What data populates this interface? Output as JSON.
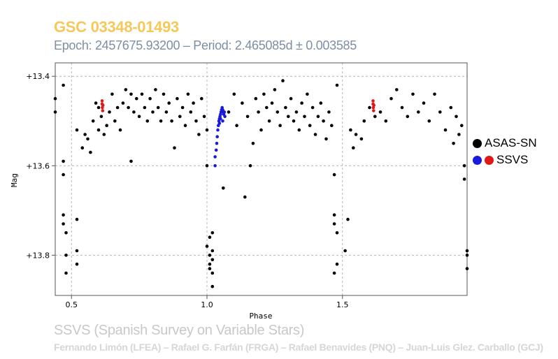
{
  "header": {
    "star_name": "GSC 03348-01493",
    "epoch_line": "Epoch: 2457675.93200 – Period: 2.465085d ± 0.003585"
  },
  "footer": {
    "survey": "SSVS (Spanish Survey on Variable Stars)",
    "credits": "Fernando Limón (LFEA) – Rafael G. Farfán (FRGA) – Rafael Benavides (PNQ) – Juan-Luis Glez. Carballo (GCJ)"
  },
  "legend": {
    "asassn_label": "ASAS-SN",
    "ssvs_label": "SSVS"
  },
  "colors": {
    "title": "#f5c85a",
    "subtitle": "#7d8fa3",
    "asassn": "#000000",
    "ssvs_blue": "#1a1adb",
    "ssvs_red": "#e01818",
    "grid": "#b4b4b4"
  },
  "chart_data": {
    "type": "scatter",
    "title": "GSC 03348-01493",
    "xlabel": "Phase",
    "ylabel": "Mag",
    "xlim": [
      0.44,
      1.96
    ],
    "ylim": [
      13.89,
      13.37
    ],
    "y_inverted": true,
    "x_ticks": [
      0.5,
      1.0,
      1.5
    ],
    "x_tick_labels": [
      "0.5",
      "1.0",
      "1.5"
    ],
    "y_ticks": [
      13.4,
      13.6,
      13.8
    ],
    "y_tick_labels": [
      "+13.4",
      "+13.6",
      "+13.8"
    ],
    "grid": true,
    "legend_position": "right",
    "series": [
      {
        "name": "ASAS-SN",
        "color": "#000000",
        "points": [
          [
            0.44,
            13.45
          ],
          [
            0.44,
            13.48
          ],
          [
            0.47,
            13.42
          ],
          [
            0.47,
            13.59
          ],
          [
            0.47,
            13.71
          ],
          [
            0.47,
            13.73
          ],
          [
            0.48,
            13.75
          ],
          [
            0.47,
            13.62
          ],
          [
            0.48,
            13.84
          ],
          [
            0.48,
            13.8
          ],
          [
            0.52,
            13.72
          ],
          [
            0.52,
            13.79
          ],
          [
            0.52,
            13.82
          ],
          [
            0.52,
            13.52
          ],
          [
            0.54,
            13.56
          ],
          [
            0.55,
            13.53
          ],
          [
            0.56,
            13.54
          ],
          [
            0.57,
            13.57
          ],
          [
            0.58,
            13.5
          ],
          [
            0.59,
            13.46
          ],
          [
            0.6,
            13.47
          ],
          [
            0.6,
            13.52
          ],
          [
            0.61,
            13.49
          ],
          [
            0.62,
            13.53
          ],
          [
            0.63,
            13.51
          ],
          [
            0.64,
            13.48
          ],
          [
            0.65,
            13.44
          ],
          [
            0.66,
            13.5
          ],
          [
            0.67,
            13.47
          ],
          [
            0.68,
            13.52
          ],
          [
            0.69,
            13.46
          ],
          [
            0.7,
            13.43
          ],
          [
            0.71,
            13.47
          ],
          [
            0.72,
            13.44
          ],
          [
            0.72,
            13.59
          ],
          [
            0.73,
            13.48
          ],
          [
            0.74,
            13.45
          ],
          [
            0.75,
            13.49
          ],
          [
            0.76,
            13.44
          ],
          [
            0.77,
            13.47
          ],
          [
            0.78,
            13.5
          ],
          [
            0.79,
            13.45
          ],
          [
            0.8,
            13.48
          ],
          [
            0.81,
            13.43
          ],
          [
            0.82,
            13.47
          ],
          [
            0.83,
            13.5
          ],
          [
            0.84,
            13.44
          ],
          [
            0.85,
            13.48
          ],
          [
            0.86,
            13.46
          ],
          [
            0.87,
            13.5
          ],
          [
            0.88,
            13.56
          ],
          [
            0.89,
            13.45
          ],
          [
            0.9,
            13.49
          ],
          [
            0.91,
            13.47
          ],
          [
            0.92,
            13.51
          ],
          [
            0.93,
            13.44
          ],
          [
            0.94,
            13.48
          ],
          [
            0.95,
            13.46
          ],
          [
            0.96,
            13.5
          ],
          [
            0.97,
            13.53
          ],
          [
            0.98,
            13.45
          ],
          [
            0.99,
            13.49
          ],
          [
            1.0,
            13.6
          ],
          [
            1.0,
            13.52
          ],
          [
            1.0,
            13.78
          ],
          [
            1.01,
            13.8
          ],
          [
            1.01,
            13.82
          ],
          [
            1.02,
            13.84
          ],
          [
            1.02,
            13.79
          ],
          [
            1.01,
            13.76
          ],
          [
            1.02,
            13.87
          ],
          [
            1.02,
            13.75
          ],
          [
            1.01,
            13.83
          ],
          [
            1.02,
            13.81
          ],
          [
            1.06,
            13.65
          ],
          [
            1.08,
            13.48
          ],
          [
            1.1,
            13.44
          ],
          [
            1.11,
            13.51
          ],
          [
            1.13,
            13.46
          ],
          [
            1.14,
            13.67
          ],
          [
            1.15,
            13.49
          ],
          [
            1.16,
            13.6
          ],
          [
            1.17,
            13.55
          ],
          [
            1.18,
            13.45
          ],
          [
            1.19,
            13.48
          ],
          [
            1.2,
            13.52
          ],
          [
            1.21,
            13.44
          ],
          [
            1.22,
            13.47
          ],
          [
            1.23,
            13.5
          ],
          [
            1.24,
            13.46
          ],
          [
            1.25,
            13.43
          ],
          [
            1.26,
            13.48
          ],
          [
            1.27,
            13.51
          ],
          [
            1.28,
            13.41
          ],
          [
            1.29,
            13.47
          ],
          [
            1.3,
            13.49
          ],
          [
            1.31,
            13.45
          ],
          [
            1.32,
            13.5
          ],
          [
            1.33,
            13.48
          ],
          [
            1.34,
            13.52
          ],
          [
            1.35,
            13.46
          ],
          [
            1.36,
            13.49
          ],
          [
            1.37,
            13.44
          ],
          [
            1.38,
            13.51
          ],
          [
            1.39,
            13.47
          ],
          [
            1.4,
            13.53
          ],
          [
            1.41,
            13.49
          ],
          [
            1.42,
            13.46
          ],
          [
            1.43,
            13.5
          ],
          [
            1.44,
            13.54
          ],
          [
            1.45,
            13.48
          ],
          [
            1.46,
            13.51
          ],
          [
            1.47,
            13.62
          ],
          [
            1.47,
            13.71
          ],
          [
            1.48,
            13.75
          ],
          [
            1.47,
            13.73
          ],
          [
            1.47,
            13.84
          ],
          [
            1.48,
            13.82
          ],
          [
            1.48,
            13.42
          ],
          [
            1.52,
            13.72
          ],
          [
            1.51,
            13.79
          ],
          [
            1.53,
            13.52
          ],
          [
            1.54,
            13.56
          ],
          [
            1.55,
            13.53
          ],
          [
            1.57,
            13.54
          ],
          [
            1.58,
            13.5
          ],
          [
            1.6,
            13.47
          ],
          [
            1.62,
            13.49
          ],
          [
            1.64,
            13.48
          ],
          [
            1.66,
            13.5
          ],
          [
            1.68,
            13.45
          ],
          [
            1.7,
            13.43
          ],
          [
            1.72,
            13.47
          ],
          [
            1.74,
            13.49
          ],
          [
            1.76,
            13.44
          ],
          [
            1.78,
            13.48
          ],
          [
            1.8,
            13.46
          ],
          [
            1.82,
            13.5
          ],
          [
            1.84,
            13.44
          ],
          [
            1.86,
            13.48
          ],
          [
            1.88,
            13.52
          ],
          [
            1.9,
            13.47
          ],
          [
            1.91,
            13.55
          ],
          [
            1.92,
            13.49
          ],
          [
            1.93,
            13.53
          ],
          [
            1.94,
            13.51
          ],
          [
            1.95,
            13.63
          ],
          [
            1.95,
            13.6
          ],
          [
            1.96,
            13.79
          ],
          [
            1.96,
            13.8
          ],
          [
            1.96,
            13.83
          ]
        ]
      },
      {
        "name": "SSVS",
        "color": "#1a1adb",
        "points": [
          [
            1.03,
            13.6
          ],
          [
            1.03,
            13.58
          ],
          [
            1.034,
            13.565
          ],
          [
            1.036,
            13.55
          ],
          [
            1.038,
            13.535
          ],
          [
            1.04,
            13.52
          ],
          [
            1.042,
            13.51
          ],
          [
            1.044,
            13.5
          ],
          [
            1.046,
            13.495
          ],
          [
            1.048,
            13.49
          ],
          [
            1.05,
            13.485
          ],
          [
            1.052,
            13.48
          ],
          [
            1.054,
            13.475
          ],
          [
            1.056,
            13.47
          ],
          [
            1.058,
            13.475
          ],
          [
            1.06,
            13.48
          ],
          [
            1.062,
            13.485
          ],
          [
            1.064,
            13.48
          ],
          [
            1.066,
            13.49
          ],
          [
            1.058,
            13.5
          ],
          [
            1.046,
            13.505
          ],
          [
            1.05,
            13.495
          ]
        ]
      },
      {
        "name": "SSVS",
        "color": "#e01818",
        "points": [
          [
            0.613,
            13.455
          ],
          [
            0.613,
            13.462
          ],
          [
            0.614,
            13.47
          ],
          [
            0.615,
            13.477
          ],
          [
            0.616,
            13.465
          ],
          [
            1.613,
            13.455
          ],
          [
            1.613,
            13.462
          ],
          [
            1.614,
            13.47
          ],
          [
            1.615,
            13.477
          ],
          [
            1.616,
            13.465
          ]
        ]
      }
    ]
  }
}
